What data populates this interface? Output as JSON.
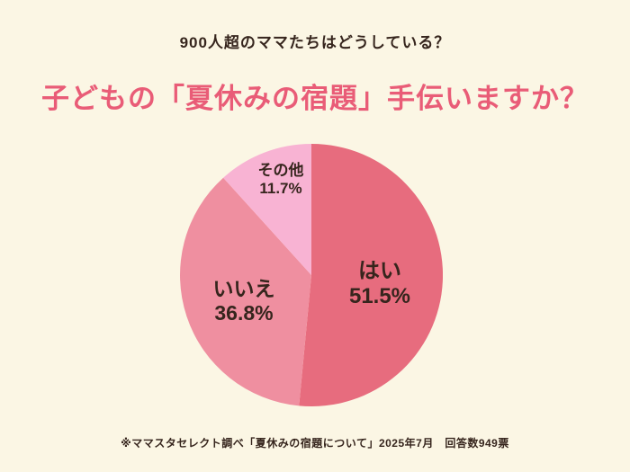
{
  "page": {
    "background": "#FBF6E4",
    "subtitle": "900人超のママたちはどうしている？",
    "title": "子どもの「夏休みの宿題」手伝いますか？",
    "title_color": "#E95C77",
    "text_color": "#36251D",
    "footer": "※ママスタセレクト調べ「夏休みの宿題について」2025年7月　回答数949票"
  },
  "chart_data": {
    "type": "pie",
    "title": "子どもの「夏休みの宿題」手伝いますか？",
    "subtitle": "900人超のママたちはどうしている？",
    "source_note": "※ママスタセレクト調べ「夏休みの宿題について」2025年7月　回答数949票",
    "total_responses": 949,
    "start_angle_deg": 0,
    "direction": "clockwise",
    "legend_position": "none",
    "slices": [
      {
        "label": "はい",
        "value": 51.5,
        "display": "51.5%",
        "color": "#E76C7E"
      },
      {
        "label": "いいえ",
        "value": 36.8,
        "display": "36.8%",
        "color": "#EF8FA0"
      },
      {
        "label": "その他",
        "value": 11.7,
        "display": "11.7%",
        "color": "#F8B3D3"
      }
    ]
  }
}
